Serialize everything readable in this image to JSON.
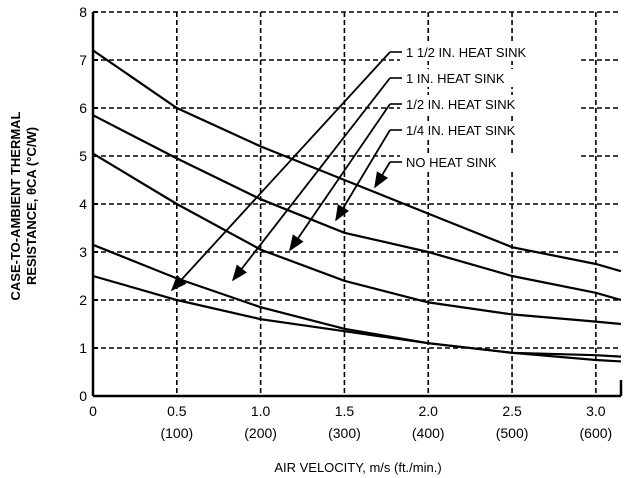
{
  "chart_data": {
    "type": "line",
    "xlabel": "AIR VELOCITY, m/s (ft./min.)",
    "ylabel_line1": "CASE-TO-AMBIENT THERMAL",
    "ylabel_line2": "RESISTANCE, θCA (°C/W)",
    "xlim": [
      0,
      3.0
    ],
    "ylim": [
      0,
      8
    ],
    "grid": true,
    "x_ticks": [
      {
        "value": 0,
        "label": "0",
        "sub": ""
      },
      {
        "value": 0.5,
        "label": "0.5",
        "sub": "(100)"
      },
      {
        "value": 1.0,
        "label": "1.0",
        "sub": "(200)"
      },
      {
        "value": 1.5,
        "label": "1.5",
        "sub": "(300)"
      },
      {
        "value": 2.0,
        "label": "2.0",
        "sub": "(400)"
      },
      {
        "value": 2.5,
        "label": "2.5",
        "sub": "(500)"
      },
      {
        "value": 3.0,
        "label": "3.0",
        "sub": "(600)"
      }
    ],
    "y_ticks": [
      0,
      1,
      2,
      3,
      4,
      5,
      6,
      7,
      8
    ],
    "series": [
      {
        "name": "NO HEAT SINK",
        "x": [
          0,
          0.5,
          1.0,
          1.5,
          2.0,
          2.5,
          3.0,
          3.15
        ],
        "y": [
          7.2,
          6.0,
          5.2,
          4.5,
          3.8,
          3.1,
          2.75,
          2.6
        ]
      },
      {
        "name": "1/4 IN. HEAT SINK",
        "x": [
          0,
          0.5,
          1.0,
          1.5,
          2.0,
          2.5,
          3.0,
          3.15
        ],
        "y": [
          5.85,
          4.95,
          4.1,
          3.4,
          3.0,
          2.5,
          2.15,
          2.0
        ]
      },
      {
        "name": "1/2 IN. HEAT SINK",
        "x": [
          0,
          0.5,
          1.0,
          1.5,
          2.0,
          2.5,
          3.0,
          3.15
        ],
        "y": [
          5.05,
          4.0,
          3.05,
          2.4,
          1.95,
          1.7,
          1.55,
          1.5
        ]
      },
      {
        "name": "1 IN. HEAT SINK",
        "x": [
          0,
          0.5,
          1.0,
          1.5,
          2.0,
          2.5,
          3.0,
          3.15
        ],
        "y": [
          3.15,
          2.45,
          1.85,
          1.4,
          1.1,
          0.9,
          0.85,
          0.82
        ]
      },
      {
        "name": "1 1/2 IN. HEAT SINK",
        "x": [
          0,
          0.5,
          1.0,
          1.5,
          2.0,
          2.5,
          3.0,
          3.15
        ],
        "y": [
          2.5,
          2.0,
          1.6,
          1.35,
          1.1,
          0.9,
          0.75,
          0.72
        ]
      }
    ],
    "legend": [
      {
        "label": "1 1/2 IN. HEAT SINK",
        "points_to": "1 1/2 IN. HEAT SINK"
      },
      {
        "label": "1 IN. HEAT SINK",
        "points_to": "1 IN. HEAT SINK"
      },
      {
        "label": "1/2 IN. HEAT SINK",
        "points_to": "1/2 IN. HEAT SINK"
      },
      {
        "label": "1/4 IN. HEAT SINK",
        "points_to": "1/4 IN. HEAT SINK"
      },
      {
        "label": "NO HEAT SINK",
        "points_to": "NO HEAT SINK"
      }
    ],
    "legend_placement": "top-right, with arrows pointing to curves"
  }
}
